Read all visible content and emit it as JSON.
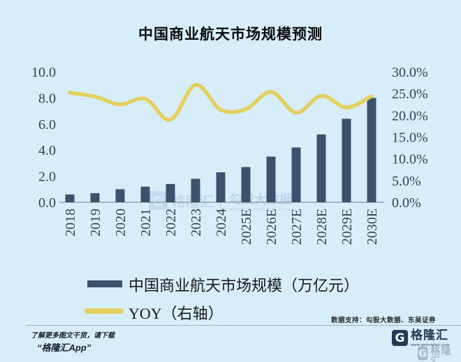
{
  "title": "中国商业航天市场规模预测",
  "chart_data": {
    "type": "bar",
    "title": "中国商业航天市场规模预测",
    "categories": [
      "2018",
      "2019",
      "2020",
      "2021",
      "2022",
      "2023",
      "2024",
      "2025E",
      "2026E",
      "2027E",
      "2028E",
      "2029E",
      "2030E"
    ],
    "series": [
      {
        "name": "中国商业航天市场规模（万亿元）",
        "type": "bar",
        "axis": "left",
        "color": "#3a526d",
        "values": [
          0.6,
          0.7,
          1.0,
          1.2,
          1.4,
          1.8,
          2.3,
          2.7,
          3.5,
          4.2,
          5.2,
          6.4,
          8.0
        ]
      },
      {
        "name": "YOY（右轴）",
        "type": "line",
        "axis": "right",
        "color": "#e3d05e",
        "values": [
          25.2,
          24.3,
          22.5,
          23.8,
          19.0,
          27.0,
          21.3,
          21.4,
          25.4,
          20.6,
          24.5,
          21.8,
          24.4
        ]
      }
    ],
    "left_axis": {
      "tick_labels": [
        "10.0",
        "8.0",
        "6.0",
        "4.0",
        "2.0",
        "0.0"
      ],
      "tick_values": [
        10,
        8,
        6,
        4,
        2,
        0
      ],
      "min": 0,
      "max": 10
    },
    "right_axis": {
      "tick_labels": [
        "30.0%",
        "25.0%",
        "20.0%",
        "15.0%",
        "10.0%",
        "5.0%",
        "0.0%"
      ],
      "tick_values": [
        30,
        25,
        20,
        15,
        10,
        5,
        0
      ],
      "min": 0,
      "max": 30
    },
    "grid": false,
    "legend_position": "bottom"
  },
  "legend": {
    "bar_label": "中国商业航天市场规模（万亿元）",
    "line_label": "YOY（右轴）"
  },
  "watermark": {
    "logo_letter": "G",
    "logo_text": "格隆汇",
    "brand": "勾股大数据",
    "url": "www.gogudata.com"
  },
  "footer": {
    "data_support": "数据支持：勾股大数据、东吴证券",
    "promo_line1": "了解更多图文干货，请下载",
    "promo_line2": "“格隆汇App”",
    "logo_letter": "G",
    "logo_text": "格隆汇",
    "logo_url": "www.gelonghui.com"
  },
  "colors": {
    "background": "#d8edfa",
    "bar": "#3a526d",
    "line": "#e3d05e",
    "axis_text": "#2f4456",
    "axis_line": "#93a2ae",
    "watermark": "#aecde4",
    "brand_navy": "#223a57"
  }
}
